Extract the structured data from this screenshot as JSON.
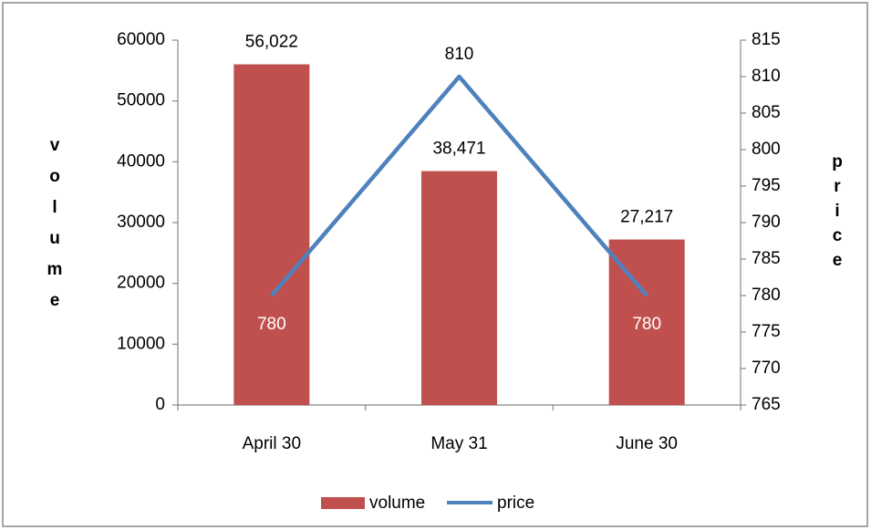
{
  "chart_data": {
    "type": "bar_line",
    "categories": [
      "April 30",
      "May 31",
      "June 30"
    ],
    "y_label": "volume",
    "y2_label": "price",
    "series": [
      {
        "name": "volume",
        "type": "bar",
        "color": "#c0504d",
        "values": [
          56022,
          38471,
          27217
        ],
        "value_labels": [
          "56,022",
          "38,471",
          "27,217"
        ]
      },
      {
        "name": "price",
        "type": "line",
        "axis": "y2",
        "color": "#4f81bd",
        "values": [
          780,
          810,
          780
        ]
      }
    ],
    "ylim": [
      0,
      60000
    ],
    "yticks": [
      0,
      10000,
      20000,
      30000,
      40000,
      50000,
      60000
    ],
    "y2lim": [
      765,
      815
    ],
    "y2ticks": [
      765,
      770,
      775,
      780,
      785,
      790,
      795,
      800,
      805,
      810,
      815
    ],
    "legend": "bottom"
  }
}
